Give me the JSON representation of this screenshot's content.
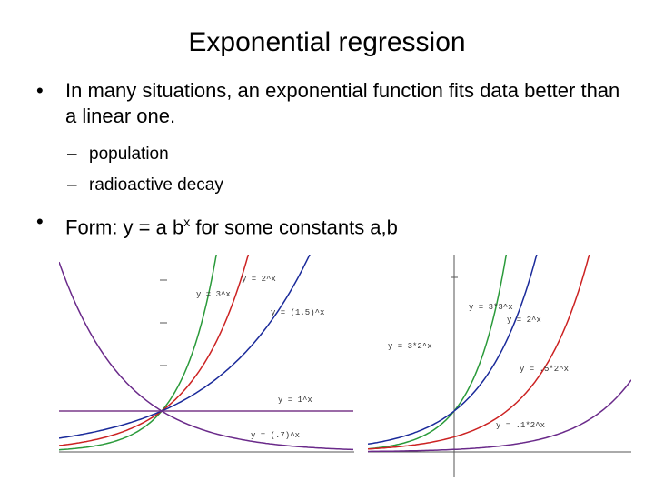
{
  "title": "Exponential regression",
  "bullets": [
    {
      "text": "In many situations, an exponential function fits data better than a linear one.",
      "subitems": [
        "population",
        "radioactive decay"
      ]
    },
    {
      "parts": [
        "Form:  y = a b",
        "x",
        " for some constants  a,b"
      ]
    }
  ],
  "left_graph": {
    "labels": [
      "y = 2^x",
      "y = 3^x",
      "y = (1.5)^x",
      "y = 1^x",
      "y = (.7)^x"
    ]
  },
  "right_graph": {
    "labels": [
      "y = 3*3^x",
      "y = 2^x",
      "y = 3*2^x",
      "y = .5*2^x",
      "y = .1*2^x"
    ]
  }
}
